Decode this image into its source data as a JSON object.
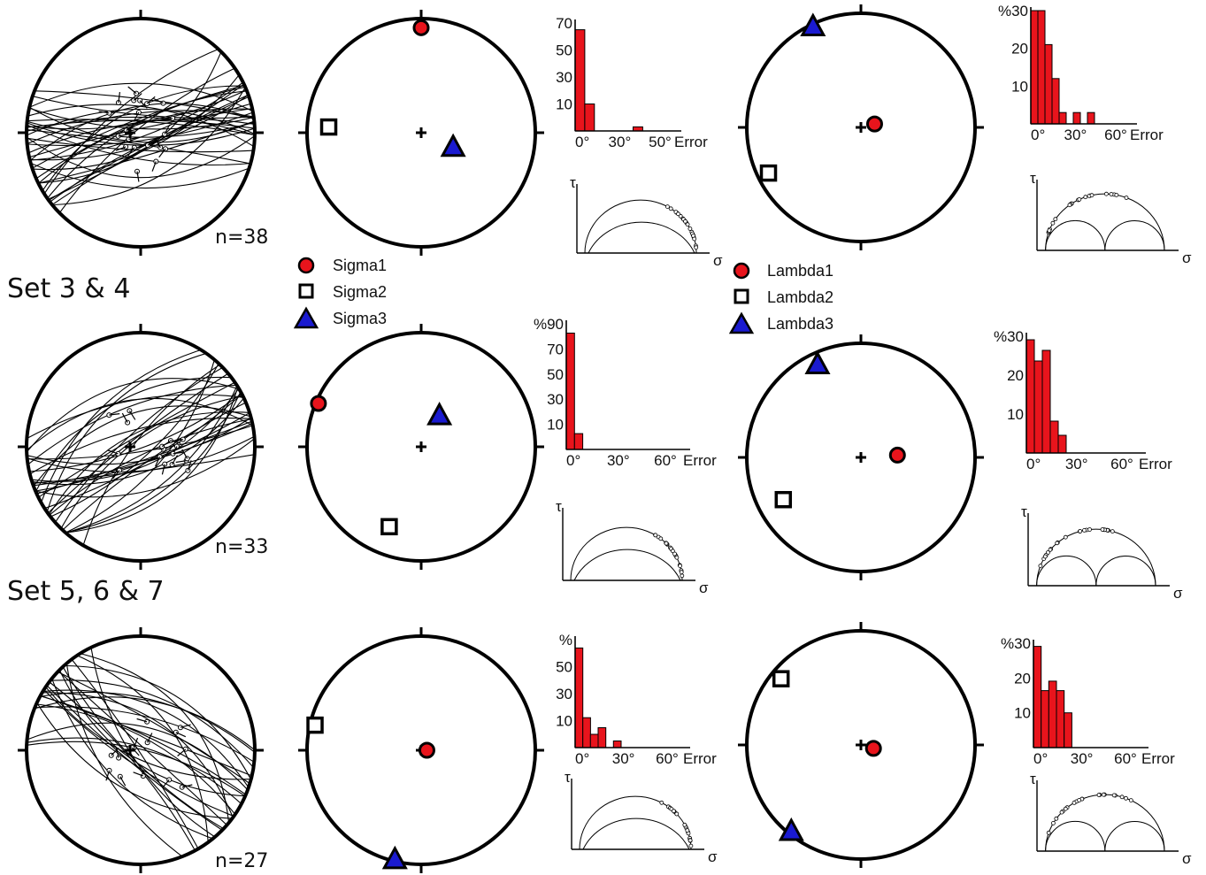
{
  "colors": {
    "red": "#e8141c",
    "blue": "#1a1ad0",
    "black": "#000000"
  },
  "set_titles": [
    "Set 3 & 4",
    "Set 5, 6 & 7"
  ],
  "legend_sigma": [
    "Sigma1",
    "Sigma2",
    "Sigma3"
  ],
  "legend_lambda": [
    "Lambda1",
    "Lambda2",
    "Lambda3"
  ],
  "axis": {
    "percent": "%",
    "error": "Error",
    "tau": "τ",
    "sigma": "σ"
  },
  "rows": [
    {
      "n_label": "n=38",
      "stress": {
        "sigma1": [
          0.0,
          0.92
        ],
        "sigma2": [
          -0.81,
          0.05
        ],
        "sigma3": [
          0.28,
          -0.13
        ]
      },
      "strain": {
        "lambda1": [
          0.12,
          0.03
        ],
        "lambda2": [
          -0.81,
          -0.4
        ],
        "lambda3": [
          -0.42,
          0.88
        ]
      },
      "hist_stress": {
        "yticks": [
          "70",
          "50",
          "30",
          "10"
        ],
        "xticks": [
          "0°",
          "30°",
          "50°"
        ],
        "ymax": 80,
        "bins": [
          {
            "x": 0,
            "v": 75
          },
          {
            "x": 5,
            "v": 20
          },
          {
            "x": 30,
            "v": 3
          }
        ],
        "bin_width": 5,
        "xmax": 55
      },
      "hist_strain": {
        "yticks": [
          "%30",
          "20",
          "10"
        ],
        "xticks": [
          "0°",
          "30°",
          "60°"
        ],
        "ymax": 30,
        "bins": [
          {
            "x": 0,
            "v": 30
          },
          {
            "x": 5,
            "v": 30
          },
          {
            "x": 10,
            "v": 21
          },
          {
            "x": 15,
            "v": 12
          },
          {
            "x": 20,
            "v": 3
          },
          {
            "x": 30,
            "v": 3
          },
          {
            "x": 40,
            "v": 3
          }
        ],
        "bin_width": 5,
        "xmax": 75
      }
    },
    {
      "n_label": "n=33",
      "stress": {
        "sigma1": [
          -0.9,
          0.38
        ],
        "sigma2": [
          -0.28,
          -0.7
        ],
        "sigma3": [
          0.16,
          0.27
        ]
      },
      "strain": {
        "lambda1": [
          0.32,
          0.02
        ],
        "lambda2": [
          -0.68,
          -0.37
        ],
        "lambda3": [
          -0.38,
          0.81
        ]
      },
      "hist_stress": {
        "yticks": [
          "%90",
          "70",
          "50",
          "30",
          "10"
        ],
        "xticks": [
          "0°",
          "30°",
          "60°"
        ],
        "ymax": 95,
        "bins": [
          {
            "x": 0,
            "v": 88
          },
          {
            "x": 5,
            "v": 12
          }
        ],
        "bin_width": 5,
        "xmax": 75
      },
      "hist_strain": {
        "yticks": [
          "%30",
          "20",
          "10"
        ],
        "xticks": [
          "0°",
          "30°",
          "60°"
        ],
        "ymax": 33,
        "bins": [
          {
            "x": 0,
            "v": 32
          },
          {
            "x": 5,
            "v": 26
          },
          {
            "x": 10,
            "v": 29
          },
          {
            "x": 15,
            "v": 9
          },
          {
            "x": 20,
            "v": 5
          }
        ],
        "bin_width": 5,
        "xmax": 75
      }
    },
    {
      "n_label": "n=27",
      "stress": {
        "sigma1": [
          0.05,
          0.0
        ],
        "sigma2": [
          -0.93,
          0.22
        ],
        "sigma3": [
          -0.23,
          -0.96
        ]
      },
      "strain": {
        "lambda1": [
          0.11,
          -0.03
        ],
        "lambda2": [
          -0.7,
          0.58
        ],
        "lambda3": [
          -0.61,
          -0.76
        ]
      },
      "hist_stress": {
        "yticks": [
          "%",
          "50",
          "30",
          "10"
        ],
        "xticks": [
          "0°",
          "30°",
          "60°"
        ],
        "ymax": 65,
        "bins": [
          {
            "x": 0,
            "v": 60
          },
          {
            "x": 5,
            "v": 18
          },
          {
            "x": 10,
            "v": 8
          },
          {
            "x": 15,
            "v": 12
          },
          {
            "x": 25,
            "v": 4
          }
        ],
        "bin_width": 5,
        "xmax": 75
      },
      "hist_strain": {
        "yticks": [
          "%30",
          "20",
          "10"
        ],
        "xticks": [
          "0°",
          "30°",
          "60°"
        ],
        "ymax": 33,
        "bins": [
          {
            "x": 0,
            "v": 32
          },
          {
            "x": 5,
            "v": 18
          },
          {
            "x": 10,
            "v": 21
          },
          {
            "x": 15,
            "v": 18
          },
          {
            "x": 20,
            "v": 11
          }
        ],
        "bin_width": 5,
        "xmax": 75
      }
    }
  ]
}
